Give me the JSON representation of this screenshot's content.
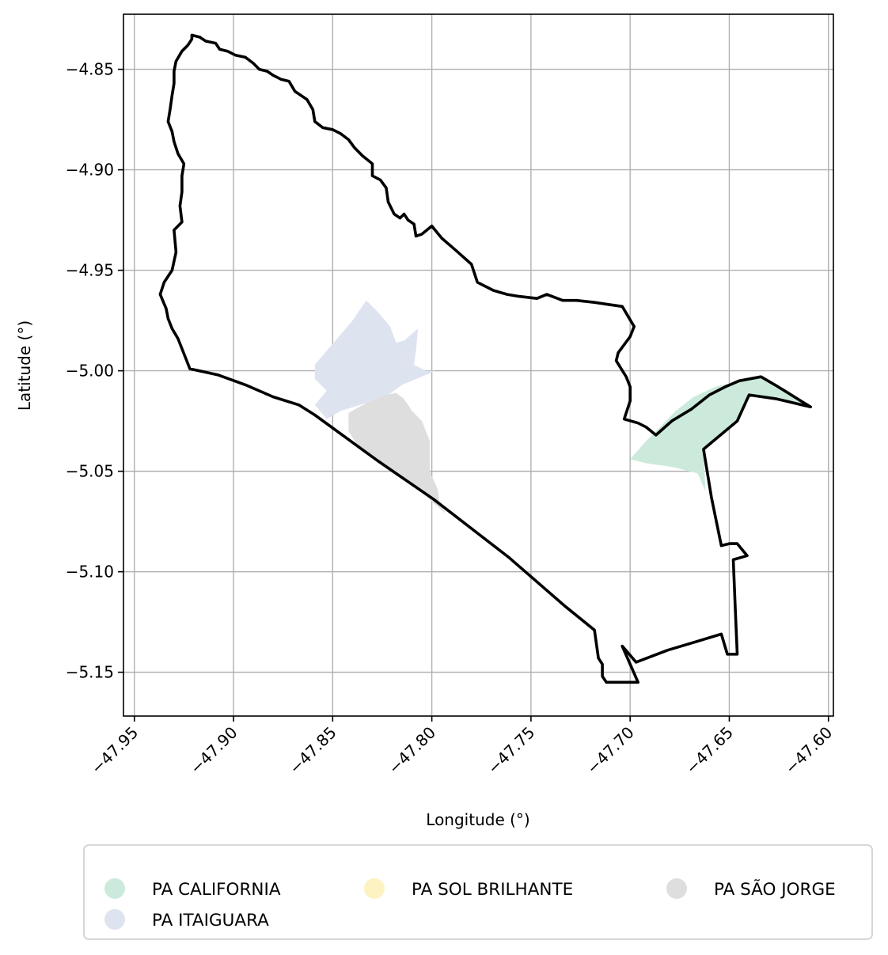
{
  "chart_data": {
    "type": "map",
    "title": "",
    "xlabel": "Longitude (°)",
    "ylabel": "Latitude (°)",
    "xlim": [
      -47.9555,
      -47.5975
    ],
    "ylim": [
      -5.1718,
      -4.8226
    ],
    "xticks": [
      {
        "value": -47.95,
        "label": "−47.95"
      },
      {
        "value": -47.9,
        "label": "−47.90"
      },
      {
        "value": -47.85,
        "label": "−47.85"
      },
      {
        "value": -47.8,
        "label": "−47.80"
      },
      {
        "value": -47.75,
        "label": "−47.75"
      },
      {
        "value": -47.7,
        "label": "−47.70"
      },
      {
        "value": -47.65,
        "label": "−47.65"
      },
      {
        "value": -47.6,
        "label": "−47.60"
      }
    ],
    "yticks": [
      {
        "value": -4.85,
        "label": "−4.85"
      },
      {
        "value": -4.9,
        "label": "−4.90"
      },
      {
        "value": -4.95,
        "label": "−4.95"
      },
      {
        "value": -5.0,
        "label": "−5.00"
      },
      {
        "value": -5.05,
        "label": "−5.05"
      },
      {
        "value": -5.1,
        "label": "−5.10"
      },
      {
        "value": -5.15,
        "label": "−5.15"
      }
    ],
    "grid": true,
    "legend_position": "below",
    "boundary": {
      "color": "#000000",
      "coords": [
        [
          -47.921,
          -4.833
        ],
        [
          -47.917,
          -4.834
        ],
        [
          -47.914,
          -4.836
        ],
        [
          -47.909,
          -4.837
        ],
        [
          -47.907,
          -4.84
        ],
        [
          -47.903,
          -4.841
        ],
        [
          -47.899,
          -4.843
        ],
        [
          -47.894,
          -4.844
        ],
        [
          -47.89,
          -4.847
        ],
        [
          -47.887,
          -4.85
        ],
        [
          -47.883,
          -4.851
        ],
        [
          -47.88,
          -4.853
        ],
        [
          -47.876,
          -4.855
        ],
        [
          -47.872,
          -4.856
        ],
        [
          -47.869,
          -4.861
        ],
        [
          -47.866,
          -4.863
        ],
        [
          -47.863,
          -4.865
        ],
        [
          -47.86,
          -4.87
        ],
        [
          -47.859,
          -4.876
        ],
        [
          -47.855,
          -4.879
        ],
        [
          -47.85,
          -4.88
        ],
        [
          -47.846,
          -4.882
        ],
        [
          -47.842,
          -4.885
        ],
        [
          -47.839,
          -4.889
        ],
        [
          -47.835,
          -4.893
        ],
        [
          -47.83,
          -4.897
        ],
        [
          -47.83,
          -4.903
        ],
        [
          -47.826,
          -4.905
        ],
        [
          -47.823,
          -4.909
        ],
        [
          -47.822,
          -4.916
        ],
        [
          -47.819,
          -4.922
        ],
        [
          -47.816,
          -4.924
        ],
        [
          -47.814,
          -4.922
        ],
        [
          -47.812,
          -4.925
        ],
        [
          -47.809,
          -4.927
        ],
        [
          -47.808,
          -4.933
        ],
        [
          -47.805,
          -4.932
        ],
        [
          -47.8,
          -4.928
        ],
        [
          -47.795,
          -4.934
        ],
        [
          -47.788,
          -4.94
        ],
        [
          -47.78,
          -4.947
        ],
        [
          -47.777,
          -4.956
        ],
        [
          -47.769,
          -4.96
        ],
        [
          -47.762,
          -4.962
        ],
        [
          -47.756,
          -4.963
        ],
        [
          -47.747,
          -4.964
        ],
        [
          -47.742,
          -4.962
        ],
        [
          -47.734,
          -4.965
        ],
        [
          -47.727,
          -4.965
        ],
        [
          -47.718,
          -4.966
        ],
        [
          -47.711,
          -4.967
        ],
        [
          -47.704,
          -4.968
        ],
        [
          -47.698,
          -4.978
        ],
        [
          -47.7,
          -4.983
        ],
        [
          -47.706,
          -4.991
        ],
        [
          -47.707,
          -4.995
        ],
        [
          -47.702,
          -5.003
        ],
        [
          -47.7,
          -5.008
        ],
        [
          -47.7,
          -5.015
        ],
        [
          -47.703,
          -5.024
        ],
        [
          -47.696,
          -5.026
        ],
        [
          -47.692,
          -5.028
        ],
        [
          -47.687,
          -5.032
        ],
        [
          -47.679,
          -5.025
        ],
        [
          -47.669,
          -5.019
        ],
        [
          -47.66,
          -5.012
        ],
        [
          -47.652,
          -5.008
        ],
        [
          -47.645,
          -5.005
        ],
        [
          -47.634,
          -5.003
        ],
        [
          -47.627,
          -5.007
        ],
        [
          -47.609,
          -5.018
        ],
        [
          -47.626,
          -5.014
        ],
        [
          -47.64,
          -5.012
        ],
        [
          -47.646,
          -5.025
        ],
        [
          -47.663,
          -5.039
        ],
        [
          -47.659,
          -5.063
        ],
        [
          -47.654,
          -5.087
        ],
        [
          -47.65,
          -5.086
        ],
        [
          -47.646,
          -5.086
        ],
        [
          -47.641,
          -5.092
        ],
        [
          -47.648,
          -5.094
        ],
        [
          -47.647,
          -5.118
        ],
        [
          -47.646,
          -5.141
        ],
        [
          -47.651,
          -5.141
        ],
        [
          -47.654,
          -5.131
        ],
        [
          -47.681,
          -5.139
        ],
        [
          -47.697,
          -5.145
        ],
        [
          -47.704,
          -5.137
        ],
        [
          -47.696,
          -5.155
        ],
        [
          -47.712,
          -5.155
        ],
        [
          -47.714,
          -5.152
        ],
        [
          -47.714,
          -5.146
        ],
        [
          -47.716,
          -5.143
        ],
        [
          -47.717,
          -5.136
        ],
        [
          -47.718,
          -5.129
        ],
        [
          -47.733,
          -5.117
        ],
        [
          -47.761,
          -5.093
        ],
        [
          -47.799,
          -5.064
        ],
        [
          -47.827,
          -5.045
        ],
        [
          -47.859,
          -5.022
        ],
        [
          -47.867,
          -5.017
        ],
        [
          -47.88,
          -5.013
        ],
        [
          -47.894,
          -5.007
        ],
        [
          -47.908,
          -5.002
        ],
        [
          -47.922,
          -4.999
        ],
        [
          -47.924,
          -4.994
        ],
        [
          -47.928,
          -4.984
        ],
        [
          -47.931,
          -4.979
        ],
        [
          -47.933,
          -4.974
        ],
        [
          -47.934,
          -4.969
        ],
        [
          -47.937,
          -4.962
        ],
        [
          -47.935,
          -4.956
        ],
        [
          -47.931,
          -4.95
        ],
        [
          -47.929,
          -4.941
        ],
        [
          -47.93,
          -4.93
        ],
        [
          -47.926,
          -4.926
        ],
        [
          -47.927,
          -4.918
        ],
        [
          -47.926,
          -4.911
        ],
        [
          -47.926,
          -4.903
        ],
        [
          -47.925,
          -4.897
        ],
        [
          -47.928,
          -4.892
        ],
        [
          -47.93,
          -4.886
        ],
        [
          -47.931,
          -4.881
        ],
        [
          -47.933,
          -4.876
        ],
        [
          -47.932,
          -4.87
        ],
        [
          -47.931,
          -4.863
        ],
        [
          -47.93,
          -4.857
        ],
        [
          -47.93,
          -4.851
        ],
        [
          -47.929,
          -4.846
        ],
        [
          -47.926,
          -4.841
        ],
        [
          -47.923,
          -4.838
        ],
        [
          -47.921,
          -4.835
        ]
      ]
    },
    "series": [
      {
        "name": "PA CALIFORNIA",
        "color": "#cceadb",
        "coords": [
          [
            -47.7,
            -5.044
          ],
          [
            -47.692,
            -5.035
          ],
          [
            -47.685,
            -5.028
          ],
          [
            -47.677,
            -5.02
          ],
          [
            -47.668,
            -5.013
          ],
          [
            -47.657,
            -5.008
          ],
          [
            -47.645,
            -5.005
          ],
          [
            -47.634,
            -5.003
          ],
          [
            -47.62,
            -5.01
          ],
          [
            -47.609,
            -5.018
          ],
          [
            -47.626,
            -5.014
          ],
          [
            -47.64,
            -5.012
          ],
          [
            -47.646,
            -5.025
          ],
          [
            -47.663,
            -5.039
          ],
          [
            -47.662,
            -5.06
          ],
          [
            -47.666,
            -5.051
          ],
          [
            -47.678,
            -5.048
          ],
          [
            -47.692,
            -5.046
          ]
        ]
      },
      {
        "name": "PA ITAIGUARA",
        "color": "#dee3f0",
        "coords": [
          [
            -47.859,
            -4.997
          ],
          [
            -47.853,
            -4.99
          ],
          [
            -47.846,
            -4.982
          ],
          [
            -47.84,
            -4.975
          ],
          [
            -47.833,
            -4.965
          ],
          [
            -47.827,
            -4.971
          ],
          [
            -47.821,
            -4.978
          ],
          [
            -47.818,
            -4.986
          ],
          [
            -47.814,
            -4.985
          ],
          [
            -47.807,
            -4.979
          ],
          [
            -47.808,
            -4.99
          ],
          [
            -47.809,
            -4.997
          ],
          [
            -47.803,
            -5.0
          ],
          [
            -47.798,
            -5.0
          ],
          [
            -47.815,
            -5.007
          ],
          [
            -47.822,
            -5.012
          ],
          [
            -47.833,
            -5.016
          ],
          [
            -47.846,
            -5.02
          ],
          [
            -47.853,
            -5.024
          ],
          [
            -47.859,
            -5.017
          ],
          [
            -47.853,
            -5.01
          ],
          [
            -47.859,
            -5.004
          ]
        ]
      },
      {
        "name": "PA SOL BRILHANTE",
        "color": "#fdf3c2",
        "coords": []
      },
      {
        "name": "PA SÃO JORGE",
        "color": "#dedede",
        "coords": [
          [
            -47.842,
            -5.021
          ],
          [
            -47.833,
            -5.016
          ],
          [
            -47.823,
            -5.012
          ],
          [
            -47.818,
            -5.011
          ],
          [
            -47.814,
            -5.014
          ],
          [
            -47.81,
            -5.02
          ],
          [
            -47.805,
            -5.025
          ],
          [
            -47.801,
            -5.035
          ],
          [
            -47.801,
            -5.05
          ],
          [
            -47.797,
            -5.059
          ],
          [
            -47.796,
            -5.066
          ],
          [
            -47.793,
            -5.071
          ],
          [
            -47.799,
            -5.066
          ],
          [
            -47.811,
            -5.055
          ],
          [
            -47.826,
            -5.045
          ],
          [
            -47.837,
            -5.038
          ],
          [
            -47.842,
            -5.03
          ]
        ]
      }
    ]
  }
}
